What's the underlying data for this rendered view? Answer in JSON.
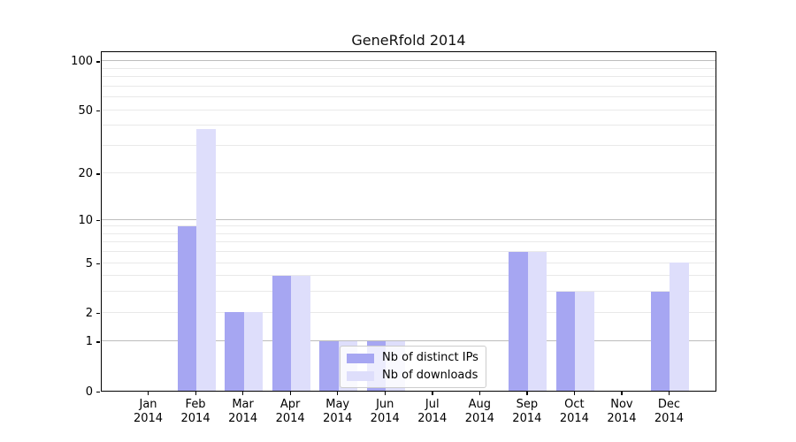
{
  "title": "GeneRfold 2014",
  "chart_data": {
    "type": "bar",
    "title": "GeneRfold 2014",
    "x_months": [
      "Jan",
      "Feb",
      "Mar",
      "Apr",
      "May",
      "Jun",
      "Jul",
      "Aug",
      "Sep",
      "Oct",
      "Nov",
      "Dec"
    ],
    "x_year": "2014",
    "series": [
      {
        "name": "Nb of distinct IPs",
        "color": "#a6a6f2",
        "values": [
          0,
          9,
          2,
          4,
          1,
          1,
          0,
          0,
          6,
          3,
          0,
          3
        ]
      },
      {
        "name": "Nb of downloads",
        "color": "#dedefb",
        "values": [
          0,
          38,
          2,
          4,
          1,
          1,
          0,
          0,
          6,
          3,
          0,
          5
        ]
      }
    ],
    "yscale": "log1p",
    "ylim": [
      0,
      116
    ],
    "y_ticks": [
      0,
      1,
      2,
      5,
      10,
      20,
      50,
      100
    ],
    "y_major_gridlines": [
      1,
      10,
      100
    ],
    "y_minor_gridlines": [
      2,
      3,
      4,
      5,
      6,
      7,
      8,
      9,
      20,
      30,
      40,
      50,
      60,
      70,
      80,
      90
    ],
    "grid": true,
    "legend_position": "lower center",
    "colors": {
      "background": "#ffffff",
      "axis": "#000000",
      "major_grid": "#bdbdbd",
      "minor_grid": "#e9e9e9",
      "legend_border": "#cccccc"
    }
  }
}
